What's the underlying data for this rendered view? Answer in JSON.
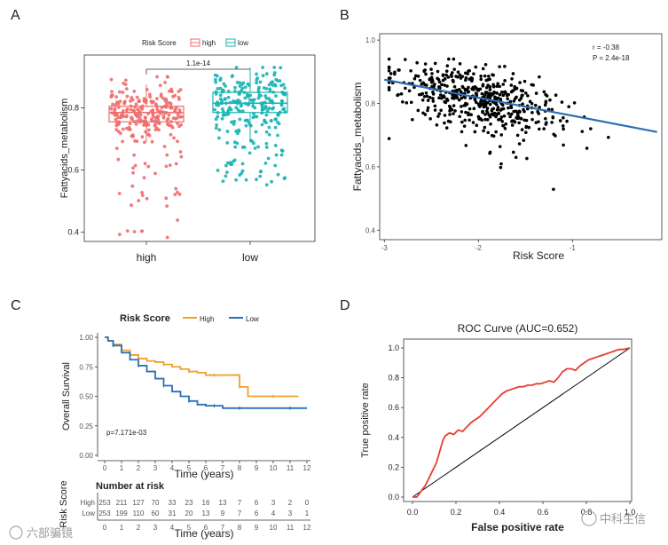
{
  "panels": {
    "A": {
      "label": "A"
    },
    "B": {
      "label": "B"
    },
    "C": {
      "label": "C"
    },
    "D": {
      "label": "D"
    }
  },
  "watermarks": {
    "left": "六部骗镜",
    "right": "中科生信"
  },
  "chart_data": [
    {
      "panel": "A",
      "type": "box",
      "ylabel": "Fattyacids_metabolism",
      "categories": [
        "high",
        "low"
      ],
      "legend": {
        "title": "Risk Score",
        "items": [
          "high",
          "low"
        ],
        "position": "top"
      },
      "colors": {
        "high": "#EE6D6D",
        "low": "#19B3B1"
      },
      "series": [
        {
          "name": "high",
          "q1": 0.755,
          "median": 0.785,
          "q3": 0.805,
          "whisker_low": 0.69,
          "whisker_high": 0.875,
          "min": 0.38,
          "max": 0.9
        },
        {
          "name": "low",
          "q1": 0.785,
          "median": 0.815,
          "q3": 0.85,
          "whisker_low": 0.69,
          "whisker_high": 0.93,
          "min": 0.55,
          "max": 0.93
        }
      ],
      "comparison": {
        "text": "1.1e-14",
        "between": [
          "high",
          "low"
        ]
      },
      "ylim": [
        0.37,
        0.97
      ],
      "yticks": [
        0.4,
        0.6,
        0.8
      ]
    },
    {
      "panel": "B",
      "type": "scatter",
      "xlabel": "Risk Score",
      "ylabel": "Fattyacids_metabolism",
      "xlim": [
        -3.05,
        -0.05
      ],
      "ylim": [
        0.37,
        1.02
      ],
      "xticks": [
        -3,
        -2,
        -1
      ],
      "yticks": [
        0.4,
        0.6,
        0.8,
        1.0
      ],
      "ytick_labels": [
        "0.4",
        "0.6",
        "0.8",
        "1.0"
      ],
      "fit_line": {
        "x": [
          -3.0,
          -0.1
        ],
        "y": [
          0.875,
          0.71
        ],
        "color": "#2E6DB4"
      },
      "annotation": [
        "r = -0.38",
        "P = 2.4e-18"
      ],
      "n_points": 506
    },
    {
      "panel": "C",
      "type": "line",
      "subtype": "kaplan-meier",
      "xlabel": "Time (years)",
      "ylabel": "Overall Survival",
      "legend": {
        "title": "Risk Score",
        "items": [
          "High",
          "Low"
        ],
        "position": "top"
      },
      "xlim": [
        0,
        12
      ],
      "ylim": [
        0,
        1
      ],
      "xticks": [
        0,
        1,
        2,
        3,
        4,
        5,
        6,
        7,
        8,
        9,
        10,
        11,
        12
      ],
      "yticks": [
        "0.00",
        "0.25",
        "0.50",
        "0.75",
        "1.00"
      ],
      "pvalue": "p=7.171e-03",
      "series": [
        {
          "name": "High",
          "color": "#F0A030",
          "x": [
            0,
            0.2,
            0.5,
            1,
            1.5,
            2,
            2.5,
            3,
            3.5,
            4,
            4.5,
            5,
            5.5,
            6,
            6.5,
            7,
            7.5,
            8,
            8.5,
            9,
            10,
            11,
            11.5
          ],
          "y": [
            1.0,
            0.97,
            0.94,
            0.89,
            0.85,
            0.82,
            0.8,
            0.79,
            0.77,
            0.75,
            0.73,
            0.71,
            0.7,
            0.68,
            0.68,
            0.68,
            0.68,
            0.58,
            0.5,
            0.5,
            0.5,
            0.5,
            0.5
          ]
        },
        {
          "name": "Low",
          "color": "#2A72B5",
          "x": [
            0,
            0.2,
            0.5,
            1,
            1.5,
            2,
            2.5,
            3,
            3.5,
            4,
            4.5,
            5,
            5.5,
            6,
            6.5,
            7,
            7.5,
            8,
            9,
            10,
            11,
            12
          ],
          "y": [
            1.0,
            0.97,
            0.93,
            0.87,
            0.81,
            0.76,
            0.71,
            0.65,
            0.59,
            0.54,
            0.5,
            0.46,
            0.43,
            0.42,
            0.42,
            0.4,
            0.4,
            0.4,
            0.4,
            0.4,
            0.4,
            0.4
          ]
        }
      ],
      "risk_table": {
        "title": "Number at risk",
        "ylabel": "Risk Score",
        "xlabel": "Time (years)",
        "rows": [
          {
            "name": "High",
            "color": "#F0A030",
            "values": [
              "253",
              "211",
              "127",
              "70",
              "33",
              "23",
              "16",
              "13",
              "7",
              "6",
              "3",
              "2",
              "0"
            ]
          },
          {
            "name": "Low",
            "color": "#2A72B5",
            "values": [
              "253",
              "199",
              "110",
              "60",
              "31",
              "20",
              "13",
              "9",
              "7",
              "6",
              "4",
              "3",
              "1"
            ]
          }
        ]
      }
    },
    {
      "panel": "D",
      "type": "line",
      "subtype": "roc",
      "title": "ROC Curve (AUC=0.652)",
      "xlabel": "False positive rate",
      "ylabel": "True positive rate",
      "xlim": [
        0,
        1
      ],
      "ylim": [
        0,
        1
      ],
      "xticks": [
        "0.0",
        "0.2",
        "0.4",
        "0.6",
        "0.8",
        "1.0"
      ],
      "yticks": [
        "0.0",
        "0.2",
        "0.4",
        "0.6",
        "0.8",
        "1.0"
      ],
      "series": [
        {
          "name": "ROC",
          "color": "#E53E2E",
          "x": [
            0,
            0.02,
            0.03,
            0.04,
            0.05,
            0.06,
            0.07,
            0.08,
            0.09,
            0.1,
            0.11,
            0.12,
            0.13,
            0.14,
            0.15,
            0.17,
            0.19,
            0.21,
            0.23,
            0.25,
            0.27,
            0.29,
            0.31,
            0.33,
            0.35,
            0.37,
            0.39,
            0.41,
            0.43,
            0.45,
            0.47,
            0.49,
            0.51,
            0.53,
            0.55,
            0.57,
            0.59,
            0.61,
            0.63,
            0.65,
            0.67,
            0.69,
            0.71,
            0.73,
            0.75,
            0.77,
            0.79,
            0.81,
            0.83,
            0.85,
            0.87,
            0.89,
            0.91,
            0.93,
            0.95,
            0.97,
            1.0
          ],
          "y": [
            0,
            0,
            0.02,
            0.04,
            0.06,
            0.08,
            0.11,
            0.14,
            0.17,
            0.2,
            0.23,
            0.28,
            0.33,
            0.38,
            0.41,
            0.43,
            0.42,
            0.45,
            0.44,
            0.47,
            0.5,
            0.52,
            0.54,
            0.57,
            0.6,
            0.63,
            0.66,
            0.69,
            0.71,
            0.72,
            0.73,
            0.74,
            0.74,
            0.75,
            0.75,
            0.76,
            0.76,
            0.77,
            0.78,
            0.77,
            0.8,
            0.84,
            0.86,
            0.86,
            0.85,
            0.88,
            0.9,
            0.92,
            0.93,
            0.94,
            0.95,
            0.96,
            0.97,
            0.98,
            0.99,
            0.99,
            1.0
          ]
        },
        {
          "name": "diagonal",
          "color": "#000000",
          "x": [
            0,
            1
          ],
          "y": [
            0,
            1
          ]
        }
      ]
    }
  ]
}
